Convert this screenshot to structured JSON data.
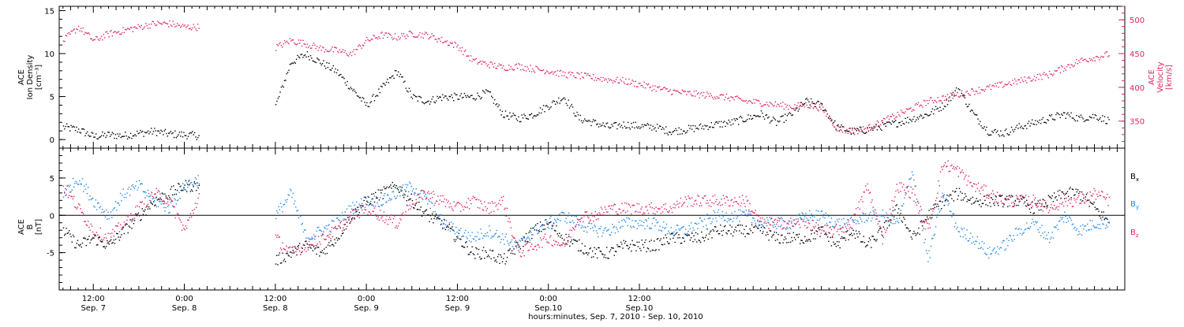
{
  "chart_data": [
    {
      "type": "scatter",
      "title": "",
      "ylabel_lines": [
        "ACE",
        "Ion Density",
        "[cm⁻³]"
      ],
      "ylabel2_lines": [
        "ACE",
        "Velocity",
        "[km/s]"
      ],
      "ylim": [
        -1,
        15.5
      ],
      "yticks": [
        "0",
        "5",
        "10",
        "15"
      ],
      "ytick_values": [
        0,
        5,
        10,
        15
      ],
      "y2lim": [
        310,
        520
      ],
      "y2ticks": [
        "350",
        "400",
        "450",
        "500"
      ],
      "y2tick_values": [
        350,
        400,
        450,
        500
      ],
      "series": [
        {
          "color": "#000000",
          "axis": "left",
          "x": [
            -4,
            -2,
            0,
            2,
            4,
            6,
            8,
            10,
            12,
            14,
            16,
            18,
            20,
            22,
            24,
            26,
            28,
            30,
            32,
            34,
            36,
            38,
            40,
            42,
            44,
            46,
            48,
            50,
            52,
            54,
            56,
            58,
            60,
            62,
            64,
            66,
            68,
            70,
            72,
            74,
            76,
            78,
            80,
            82,
            84,
            86,
            88,
            90,
            92,
            94,
            96,
            98,
            100,
            102,
            104,
            106,
            108,
            110,
            112,
            114,
            116,
            118,
            120,
            122,
            124,
            126,
            128,
            130,
            132,
            134
          ],
          "y": [
            1.5,
            1.2,
            0.4,
            0.6,
            0.5,
            0.8,
            1.0,
            0.7,
            0.6,
            0.5,
            null,
            null,
            null,
            null,
            4.0,
            9.0,
            10.0,
            9.0,
            8.0,
            6.0,
            4.0,
            6.0,
            8.0,
            5.0,
            4.5,
            5.0,
            5.0,
            5.0,
            5.5,
            3.0,
            2.5,
            3.0,
            4.0,
            5.0,
            2.5,
            2.0,
            1.5,
            1.8,
            1.6,
            1.5,
            1.0,
            1.2,
            1.5,
            1.8,
            2.0,
            2.5,
            3.0,
            2.0,
            3.0,
            4.5,
            4.0,
            1.5,
            1.0,
            1.2,
            1.6,
            2.0,
            2.5,
            3.0,
            4.0,
            6.0,
            3.0,
            1.0,
            0.8,
            1.5,
            2.0,
            2.5,
            3.0,
            2.5,
            2.8,
            2.2
          ]
        },
        {
          "color": "#e0245e",
          "axis": "right",
          "x": [
            -4,
            -2,
            0,
            2,
            4,
            6,
            8,
            10,
            12,
            14,
            16,
            18,
            20,
            22,
            24,
            26,
            28,
            30,
            32,
            34,
            36,
            38,
            40,
            42,
            44,
            46,
            48,
            50,
            52,
            54,
            56,
            58,
            60,
            62,
            64,
            66,
            68,
            70,
            72,
            74,
            76,
            78,
            80,
            82,
            84,
            86,
            88,
            90,
            92,
            94,
            96,
            98,
            100,
            102,
            104,
            106,
            108,
            110,
            112,
            114,
            116,
            118,
            120,
            122,
            124,
            126,
            128,
            130,
            132,
            134
          ],
          "y": [
            470,
            490,
            470,
            480,
            485,
            490,
            495,
            495,
            490,
            490,
            null,
            null,
            null,
            null,
            460,
            470,
            465,
            458,
            455,
            450,
            470,
            478,
            475,
            480,
            478,
            470,
            462,
            440,
            435,
            430,
            432,
            428,
            425,
            420,
            418,
            415,
            412,
            410,
            405,
            400,
            395,
            392,
            390,
            388,
            385,
            380,
            378,
            375,
            372,
            375,
            370,
            340,
            335,
            340,
            350,
            360,
            370,
            380,
            385,
            390,
            395,
            400,
            405,
            410,
            415,
            420,
            430,
            440,
            445,
            450
          ]
        }
      ]
    },
    {
      "type": "scatter",
      "title": "",
      "ylabel_lines": [
        "ACE",
        "B",
        "[nT]"
      ],
      "ylim": [
        -10,
        9
      ],
      "yticks": [
        "-5",
        "0",
        "5"
      ],
      "ytick_values": [
        -5,
        0,
        5
      ],
      "legend": [
        "B",
        "B",
        "B"
      ],
      "legend_sub": [
        "x",
        "y",
        "z"
      ],
      "series": [
        {
          "name": "Bx",
          "color": "#000000",
          "x": [
            -4,
            -2,
            0,
            2,
            4,
            6,
            8,
            10,
            12,
            14,
            16,
            18,
            20,
            22,
            24,
            26,
            28,
            30,
            32,
            34,
            36,
            38,
            40,
            42,
            44,
            46,
            48,
            50,
            52,
            54,
            56,
            58,
            60,
            62,
            64,
            66,
            68,
            70,
            72,
            74,
            76,
            78,
            80,
            82,
            84,
            86,
            88,
            90,
            92,
            94,
            96,
            98,
            100,
            102,
            104,
            106,
            108,
            110,
            112,
            114,
            116,
            118,
            120,
            122,
            124,
            126,
            128,
            130,
            132,
            134
          ],
          "y": [
            -2,
            -4,
            -3,
            -4,
            -2,
            0,
            2,
            3,
            4,
            4,
            null,
            null,
            null,
            null,
            -6,
            -5,
            -4,
            -5,
            -3,
            0,
            2,
            3,
            4,
            2,
            0,
            -1,
            -3,
            -5,
            -5,
            -6,
            -4,
            -2,
            -1,
            -3,
            -4,
            -5,
            -5,
            -4,
            -4,
            -4,
            -3,
            -3,
            -3,
            -2,
            -2,
            -2,
            -2,
            -3,
            -3,
            -3,
            -2,
            -4,
            -2,
            -4,
            -2,
            1,
            -3,
            0,
            2,
            3,
            2,
            2,
            2,
            2,
            1,
            2,
            3,
            3,
            1,
            -1
          ]
        },
        {
          "name": "By",
          "color": "#1e88e5",
          "x": [
            -4,
            -2,
            0,
            2,
            4,
            6,
            8,
            10,
            12,
            14,
            16,
            18,
            20,
            22,
            24,
            26,
            28,
            30,
            32,
            34,
            36,
            38,
            40,
            42,
            44,
            46,
            48,
            50,
            52,
            54,
            56,
            58,
            60,
            62,
            64,
            66,
            68,
            70,
            72,
            74,
            76,
            78,
            80,
            82,
            84,
            86,
            88,
            90,
            92,
            94,
            96,
            98,
            100,
            102,
            104,
            106,
            108,
            110,
            112,
            114,
            116,
            118,
            120,
            122,
            124,
            126,
            128,
            130,
            132,
            134
          ],
          "y": [
            3,
            5,
            2,
            0,
            3,
            4,
            2,
            1,
            4,
            5,
            null,
            null,
            null,
            null,
            0,
            3,
            -3,
            -2,
            -1,
            1,
            2,
            2,
            3,
            4,
            2,
            -1,
            -2,
            -3,
            -2,
            -3,
            -4,
            -2,
            -1,
            0,
            -1,
            -2,
            -2,
            -1,
            -1,
            -1,
            -2,
            -2,
            -1,
            0,
            0,
            0,
            -1,
            -1,
            -1,
            0,
            0,
            -1,
            -1,
            0,
            0,
            -1,
            6,
            -6,
            3,
            -2,
            -3,
            -5,
            -4,
            -2,
            -1,
            -3,
            0,
            -2,
            -1,
            -1
          ]
        },
        {
          "name": "Bz",
          "color": "#e0245e",
          "x": [
            -4,
            -2,
            0,
            2,
            4,
            6,
            8,
            10,
            12,
            14,
            16,
            18,
            20,
            22,
            24,
            26,
            28,
            30,
            32,
            34,
            36,
            38,
            40,
            42,
            44,
            46,
            48,
            50,
            52,
            54,
            56,
            58,
            60,
            62,
            64,
            66,
            68,
            70,
            72,
            74,
            76,
            78,
            80,
            82,
            84,
            86,
            88,
            90,
            92,
            94,
            96,
            98,
            100,
            102,
            104,
            106,
            108,
            110,
            112,
            114,
            116,
            118,
            120,
            122,
            124,
            126,
            128,
            130,
            132,
            134
          ],
          "y": [
            4,
            1,
            -2,
            -3,
            -1,
            1,
            3,
            2,
            -2,
            3,
            null,
            null,
            null,
            null,
            -3,
            -5,
            -4,
            -3,
            -2,
            0,
            1,
            0,
            -1,
            2,
            3,
            2,
            1,
            2,
            1,
            2,
            -5,
            -4,
            -3,
            -4,
            0,
            0,
            1,
            1,
            1,
            1,
            1,
            2,
            2,
            2,
            2,
            2,
            -1,
            -1,
            -1,
            -1,
            -2,
            -2,
            -1,
            4,
            -3,
            4,
            3,
            -2,
            7,
            6,
            4,
            3,
            2,
            2,
            2,
            1,
            2,
            2,
            3,
            2
          ]
        }
      ]
    }
  ],
  "xaxis": {
    "xlim": [
      -4.5,
      136
    ],
    "xlabel": "hours:minutes, Sep. 7, 2010 - Sep. 10, 2010",
    "ticks": [
      {
        "x": 0,
        "time": "12:00",
        "date": "Sep. 7"
      },
      {
        "x": 12,
        "time": "0:00",
        "date": "Sep. 8"
      },
      {
        "x": 24,
        "time": "12:00",
        "date": "Sep. 8"
      },
      {
        "x": 36,
        "time": "0:00",
        "date": "Sep. 9"
      },
      {
        "x": 48,
        "time": "12:00",
        "date": "Sep. 9"
      },
      {
        "x": 60,
        "time": "0:00",
        "date": "Sep.10"
      },
      {
        "x": 72,
        "time": "12:00",
        "date": "Sep.10"
      }
    ]
  }
}
